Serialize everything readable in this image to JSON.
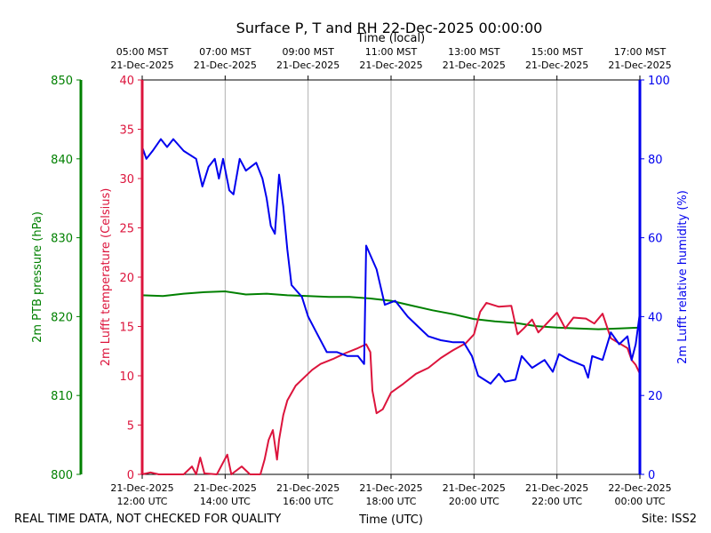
{
  "chart_data": {
    "type": "line",
    "title": "Surface P, T and RH 22-Dec-2025 00:00:00",
    "xlabel_bottom": "Time (UTC)",
    "xlabel_top": "Time (local)",
    "footer_left": "REAL TIME DATA, NOT CHECKED FOR QUALITY",
    "footer_right": "Site: ISS2",
    "x_range_hours": [
      12,
      24
    ],
    "bottom_ticks": [
      {
        "hour": 12,
        "line1": "21-Dec-2025",
        "line2": "12:00 UTC"
      },
      {
        "hour": 14,
        "line1": "21-Dec-2025",
        "line2": "14:00 UTC"
      },
      {
        "hour": 16,
        "line1": "21-Dec-2025",
        "line2": "16:00 UTC"
      },
      {
        "hour": 18,
        "line1": "21-Dec-2025",
        "line2": "18:00 UTC"
      },
      {
        "hour": 20,
        "line1": "21-Dec-2025",
        "line2": "20:00 UTC"
      },
      {
        "hour": 22,
        "line1": "21-Dec-2025",
        "line2": "22:00 UTC"
      },
      {
        "hour": 24,
        "line1": "22-Dec-2025",
        "line2": "00:00 UTC"
      }
    ],
    "top_ticks": [
      {
        "hour": 12,
        "line1": "05:00 MST",
        "line2": "21-Dec-2025"
      },
      {
        "hour": 14,
        "line1": "07:00 MST",
        "line2": "21-Dec-2025"
      },
      {
        "hour": 16,
        "line1": "09:00 MST",
        "line2": "21-Dec-2025"
      },
      {
        "hour": 18,
        "line1": "11:00 MST",
        "line2": "21-Dec-2025"
      },
      {
        "hour": 20,
        "line1": "13:00 MST",
        "line2": "21-Dec-2025"
      },
      {
        "hour": 22,
        "line1": "15:00 MST",
        "line2": "21-Dec-2025"
      },
      {
        "hour": 24,
        "line1": "17:00 MST",
        "line2": "21-Dec-2025"
      }
    ],
    "axes": {
      "pressure": {
        "label": "2m PTB pressure (hPa)",
        "range": [
          800,
          850
        ],
        "ticks": [
          800,
          810,
          820,
          830,
          840,
          850
        ],
        "color": "#008000"
      },
      "temperature": {
        "label": "2m Lufft temperature (Celsius)",
        "range": [
          0,
          40
        ],
        "ticks": [
          0,
          5,
          10,
          15,
          20,
          25,
          30,
          35,
          40
        ],
        "color": "#dc143c"
      },
      "humidity": {
        "label": "2m Lufft relative humidity (%)",
        "range": [
          0,
          100
        ],
        "ticks": [
          0,
          20,
          40,
          60,
          80,
          100
        ],
        "color": "#0000ee"
      }
    },
    "series": [
      {
        "name": "2m PTB pressure",
        "axis": "pressure",
        "color": "#008000",
        "points": [
          [
            12.0,
            822.7
          ],
          [
            12.5,
            822.6
          ],
          [
            13.0,
            822.9
          ],
          [
            13.5,
            823.1
          ],
          [
            14.0,
            823.2
          ],
          [
            14.5,
            822.8
          ],
          [
            15.0,
            822.9
          ],
          [
            15.5,
            822.7
          ],
          [
            16.0,
            822.6
          ],
          [
            16.5,
            822.5
          ],
          [
            17.0,
            822.5
          ],
          [
            17.5,
            822.3
          ],
          [
            18.0,
            822.0
          ],
          [
            18.5,
            821.4
          ],
          [
            19.0,
            820.8
          ],
          [
            19.5,
            820.3
          ],
          [
            20.0,
            819.7
          ],
          [
            20.5,
            819.4
          ],
          [
            21.0,
            819.2
          ],
          [
            21.5,
            818.8
          ],
          [
            22.0,
            818.6
          ],
          [
            22.5,
            818.5
          ],
          [
            23.0,
            818.4
          ],
          [
            23.5,
            818.5
          ],
          [
            24.0,
            818.6
          ]
        ]
      },
      {
        "name": "2m Lufft temperature",
        "axis": "temperature",
        "color": "#dc143c",
        "points": [
          [
            12.0,
            0.0
          ],
          [
            12.2,
            0.2
          ],
          [
            12.4,
            0.0
          ],
          [
            13.0,
            0.0
          ],
          [
            13.2,
            0.8
          ],
          [
            13.3,
            0.0
          ],
          [
            13.4,
            1.7
          ],
          [
            13.5,
            0.1
          ],
          [
            13.8,
            0.0
          ],
          [
            14.05,
            2.0
          ],
          [
            14.15,
            0.0
          ],
          [
            14.4,
            0.8
          ],
          [
            14.6,
            0.0
          ],
          [
            14.85,
            0.0
          ],
          [
            14.95,
            1.5
          ],
          [
            15.05,
            3.5
          ],
          [
            15.15,
            4.5
          ],
          [
            15.25,
            1.5
          ],
          [
            15.3,
            3.5
          ],
          [
            15.4,
            6.0
          ],
          [
            15.5,
            7.5
          ],
          [
            15.7,
            9.0
          ],
          [
            15.9,
            9.8
          ],
          [
            16.1,
            10.6
          ],
          [
            16.3,
            11.2
          ],
          [
            16.6,
            11.7
          ],
          [
            16.9,
            12.3
          ],
          [
            17.2,
            12.8
          ],
          [
            17.4,
            13.2
          ],
          [
            17.5,
            12.4
          ],
          [
            17.55,
            8.5
          ],
          [
            17.65,
            6.2
          ],
          [
            17.8,
            6.6
          ],
          [
            18.0,
            8.3
          ],
          [
            18.3,
            9.2
          ],
          [
            18.6,
            10.2
          ],
          [
            18.9,
            10.8
          ],
          [
            19.2,
            11.8
          ],
          [
            19.5,
            12.6
          ],
          [
            19.8,
            13.3
          ],
          [
            20.0,
            14.2
          ],
          [
            20.15,
            16.5
          ],
          [
            20.3,
            17.4
          ],
          [
            20.6,
            17.0
          ],
          [
            20.9,
            17.1
          ],
          [
            21.05,
            14.2
          ],
          [
            21.2,
            14.8
          ],
          [
            21.4,
            15.7
          ],
          [
            21.55,
            14.4
          ],
          [
            21.8,
            15.5
          ],
          [
            22.0,
            16.4
          ],
          [
            22.2,
            14.8
          ],
          [
            22.4,
            15.9
          ],
          [
            22.7,
            15.8
          ],
          [
            22.9,
            15.3
          ],
          [
            23.1,
            16.3
          ],
          [
            23.3,
            13.8
          ],
          [
            23.5,
            13.3
          ],
          [
            23.7,
            12.8
          ],
          [
            23.8,
            11.6
          ],
          [
            23.9,
            11.1
          ],
          [
            24.0,
            10.2
          ]
        ]
      },
      {
        "name": "2m Lufft relative humidity",
        "axis": "humidity",
        "color": "#0000ee",
        "points": [
          [
            12.0,
            83.0
          ],
          [
            12.1,
            80.0
          ],
          [
            12.25,
            82.0
          ],
          [
            12.45,
            85.0
          ],
          [
            12.6,
            83.0
          ],
          [
            12.75,
            85.0
          ],
          [
            13.0,
            82.0
          ],
          [
            13.3,
            80.0
          ],
          [
            13.45,
            73.0
          ],
          [
            13.6,
            78.0
          ],
          [
            13.75,
            80.0
          ],
          [
            13.85,
            75.0
          ],
          [
            13.95,
            80.0
          ],
          [
            14.1,
            72.0
          ],
          [
            14.2,
            71.0
          ],
          [
            14.35,
            80.0
          ],
          [
            14.5,
            77.0
          ],
          [
            14.75,
            79.0
          ],
          [
            14.9,
            75.0
          ],
          [
            15.0,
            70.0
          ],
          [
            15.1,
            63.0
          ],
          [
            15.2,
            61.0
          ],
          [
            15.3,
            76.0
          ],
          [
            15.4,
            68.0
          ],
          [
            15.5,
            57.0
          ],
          [
            15.6,
            48.0
          ],
          [
            15.85,
            45.0
          ],
          [
            16.0,
            40.0
          ],
          [
            16.2,
            36.0
          ],
          [
            16.45,
            31.0
          ],
          [
            16.7,
            31.0
          ],
          [
            16.95,
            30.0
          ],
          [
            17.2,
            30.0
          ],
          [
            17.35,
            28.0
          ],
          [
            17.4,
            58.0
          ],
          [
            17.65,
            52.0
          ],
          [
            17.85,
            43.0
          ],
          [
            18.1,
            44.0
          ],
          [
            18.4,
            40.0
          ],
          [
            18.65,
            37.5
          ],
          [
            18.9,
            35.0
          ],
          [
            19.2,
            34.0
          ],
          [
            19.5,
            33.5
          ],
          [
            19.75,
            33.5
          ],
          [
            19.95,
            30.0
          ],
          [
            20.1,
            25.0
          ],
          [
            20.4,
            23.0
          ],
          [
            20.6,
            25.5
          ],
          [
            20.75,
            23.5
          ],
          [
            21.0,
            24.0
          ],
          [
            21.15,
            30.0
          ],
          [
            21.4,
            27.0
          ],
          [
            21.7,
            29.0
          ],
          [
            21.9,
            26.0
          ],
          [
            22.05,
            30.5
          ],
          [
            22.3,
            29.0
          ],
          [
            22.65,
            27.5
          ],
          [
            22.75,
            24.5
          ],
          [
            22.85,
            30.0
          ],
          [
            23.1,
            29.0
          ],
          [
            23.3,
            36.0
          ],
          [
            23.5,
            33.0
          ],
          [
            23.7,
            35.0
          ],
          [
            23.8,
            29.0
          ],
          [
            23.9,
            33.0
          ],
          [
            24.0,
            41.0
          ]
        ]
      }
    ]
  }
}
